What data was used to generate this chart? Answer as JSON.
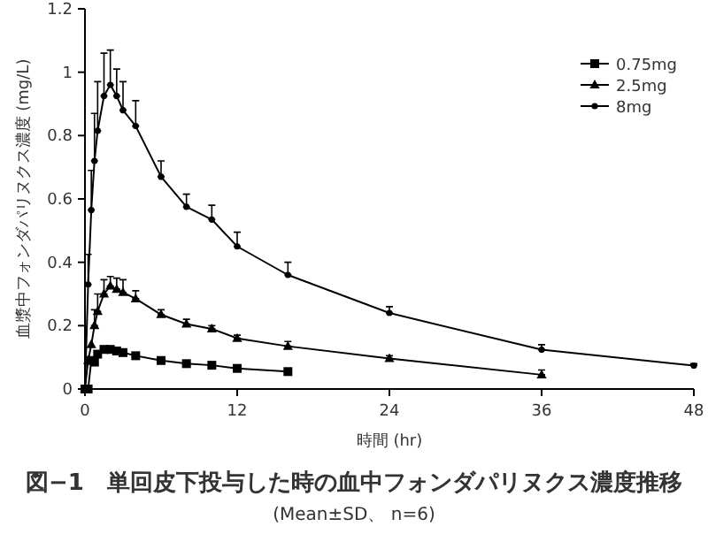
{
  "chart_data": {
    "type": "line",
    "title": "図−1　単回皮下投与した時の血中フォンダパリヌクス濃度推移",
    "subtitle": "(Mean±SD、 n=6)",
    "xlabel": "時間 (hr)",
    "ylabel": "血漿中フォンダパリヌクス濃度 (mg/L)",
    "xlim": [
      0,
      48
    ],
    "ylim": [
      0,
      1.2
    ],
    "xticks": [
      0,
      12,
      24,
      36,
      48
    ],
    "yticks": [
      0,
      0.2,
      0.4,
      0.6,
      0.8,
      1,
      1.2
    ],
    "legend": "top right",
    "series": [
      {
        "name": "0.75mg",
        "color": "#000000",
        "marker": "square",
        "x": [
          0,
          0.25,
          0.5,
          0.75,
          1,
          1.5,
          2,
          2.5,
          3,
          4,
          6,
          8,
          10,
          12,
          16
        ],
        "values": [
          0,
          0,
          0.09,
          0.085,
          0.11,
          0.125,
          0.125,
          0.12,
          0.115,
          0.105,
          0.09,
          0.08,
          0.075,
          0.065,
          0.055
        ]
      },
      {
        "name": "2.5mg",
        "color": "#000000",
        "marker": "triangle",
        "x": [
          0,
          0.25,
          0.5,
          0.75,
          1,
          1.5,
          2,
          2.5,
          3,
          4,
          6,
          8,
          10,
          12,
          16,
          24,
          36
        ],
        "values": [
          0,
          0.09,
          0.14,
          0.2,
          0.245,
          0.3,
          0.325,
          0.315,
          0.305,
          0.285,
          0.235,
          0.205,
          0.19,
          0.16,
          0.135,
          0.096,
          0.045
        ],
        "errors": [
          null,
          null,
          null,
          [
            0.2,
            0.25
          ],
          [
            0.245,
            0.3
          ],
          [
            0.3,
            0.345
          ],
          [
            0.325,
            0.355
          ],
          [
            0.315,
            0.35
          ],
          [
            0.305,
            0.345
          ],
          [
            0.285,
            0.31
          ],
          [
            0.235,
            0.25
          ],
          [
            0.205,
            0.22
          ],
          [
            0.19,
            0.2
          ],
          [
            0.16,
            0.17
          ],
          [
            0.135,
            0.15
          ],
          [
            0.096,
            0.105
          ],
          [
            0.045,
            0.06
          ]
        ]
      },
      {
        "name": "8mg",
        "color": "#000000",
        "marker": "circle",
        "x": [
          0,
          0.25,
          0.5,
          0.75,
          1,
          1.5,
          2,
          2.5,
          3,
          4,
          6,
          8,
          10,
          12,
          16,
          24,
          36,
          48
        ],
        "values": [
          0,
          0.33,
          0.565,
          0.72,
          0.815,
          0.925,
          0.96,
          0.925,
          0.88,
          0.83,
          0.67,
          0.575,
          0.535,
          0.45,
          0.36,
          0.24,
          0.124,
          0.074
        ],
        "errors": [
          null,
          [
            0.33,
            0.425
          ],
          [
            0.565,
            0.69
          ],
          [
            0.72,
            0.87
          ],
          [
            0.815,
            0.97
          ],
          [
            0.925,
            1.06
          ],
          [
            0.96,
            1.07
          ],
          [
            0.925,
            1.01
          ],
          [
            0.88,
            0.97
          ],
          [
            0.83,
            0.91
          ],
          [
            0.67,
            0.72
          ],
          [
            0.575,
            0.615
          ],
          [
            0.535,
            0.58
          ],
          [
            0.45,
            0.495
          ],
          [
            0.36,
            0.4
          ],
          [
            0.24,
            0.26
          ],
          [
            0.124,
            0.14
          ],
          [
            0.074,
            0.08
          ]
        ]
      }
    ]
  }
}
